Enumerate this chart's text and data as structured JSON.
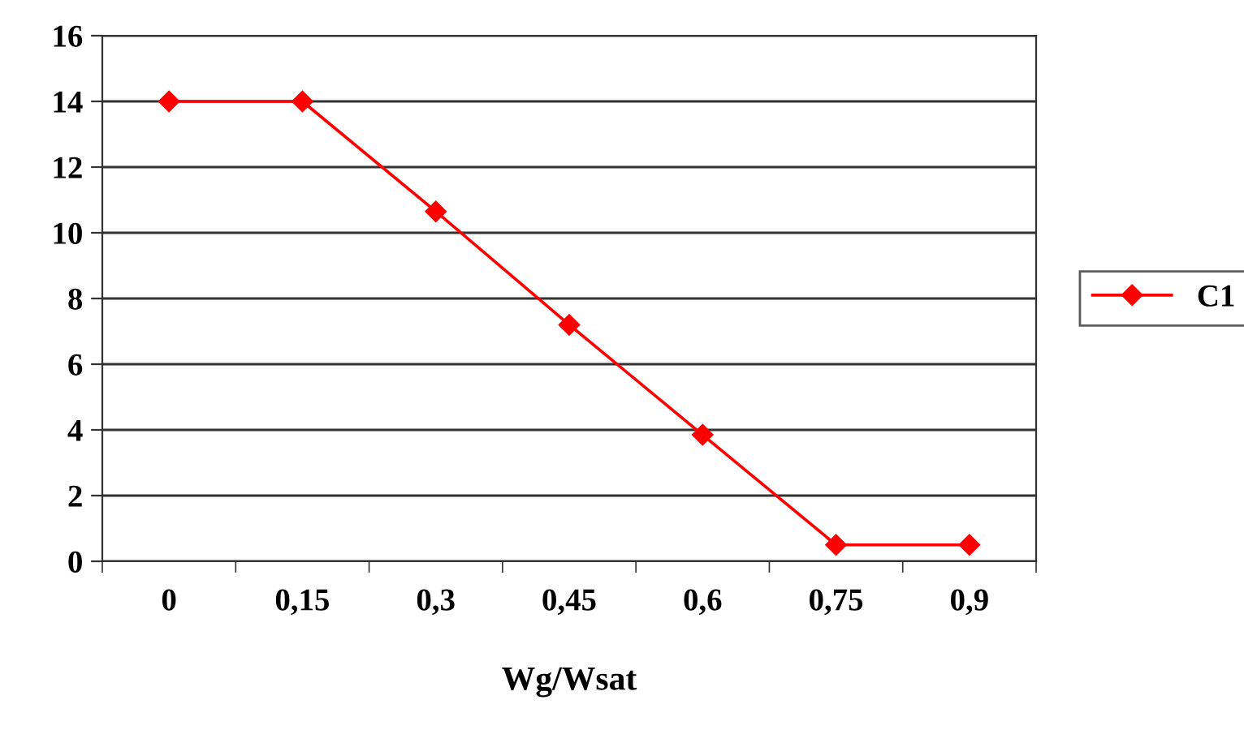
{
  "chart_data": {
    "type": "line",
    "xlabel": "Wg/Wsat",
    "categories": [
      "0",
      "0,15",
      "0,3",
      "0,45",
      "0,6",
      "0,75",
      "0,9"
    ],
    "series": [
      {
        "name": "C1",
        "color": "#ff0000",
        "values": [
          14,
          14,
          10.65,
          7.2,
          3.85,
          0.5,
          0.5
        ]
      }
    ],
    "ylim": [
      0,
      16
    ],
    "yticks": [
      0,
      2,
      4,
      6,
      8,
      10,
      12,
      14,
      16
    ],
    "grid": "y",
    "legend": "right",
    "marker": "diamond",
    "line_style": "solid"
  }
}
